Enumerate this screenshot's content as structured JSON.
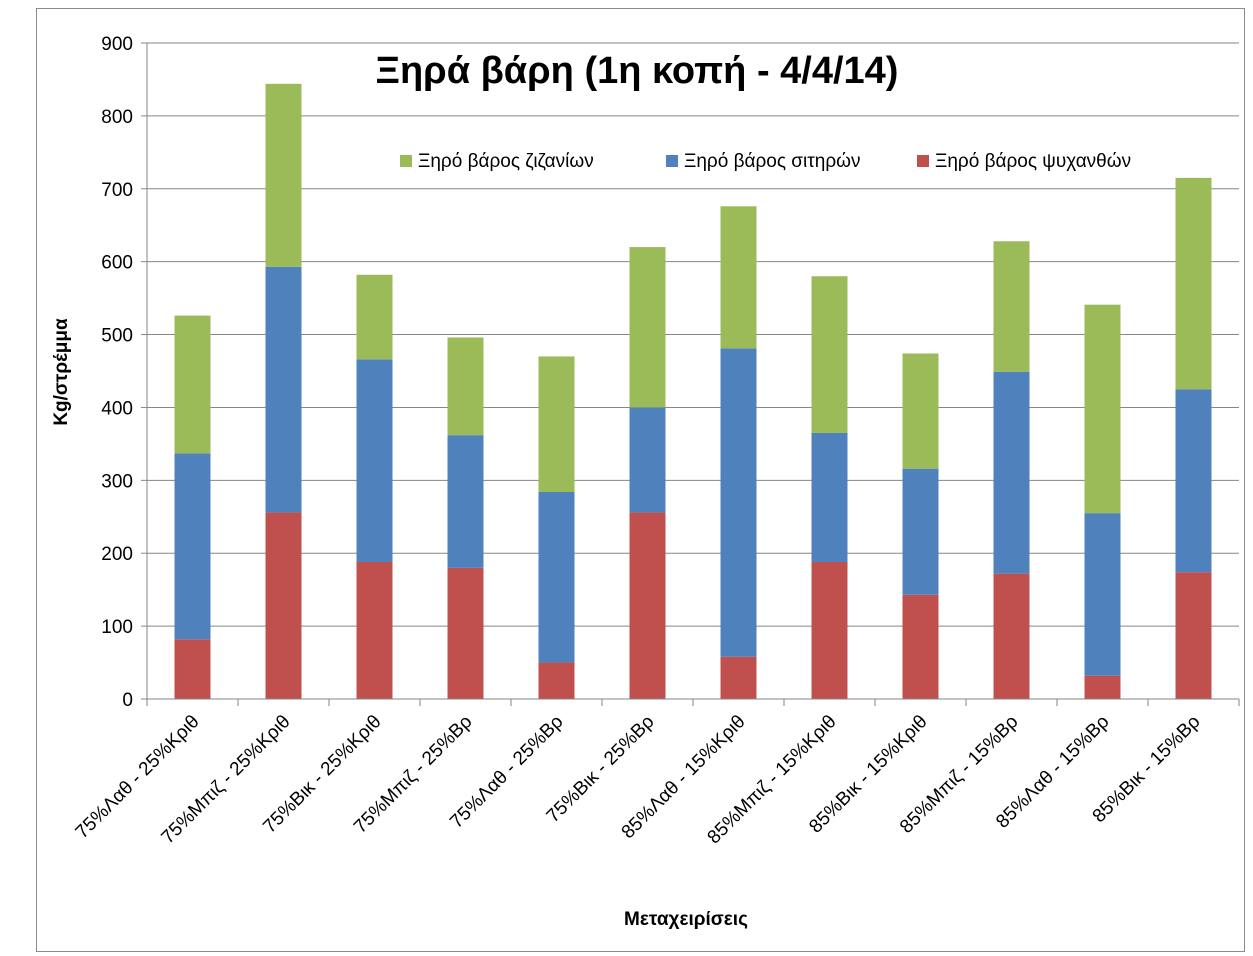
{
  "chart_data": {
    "type": "bar",
    "stacked": true,
    "title": "Ξηρά βάρη (1η κοπή - 4/4/14)",
    "xlabel": "Μεταχειρίσεις",
    "ylabel": "Kg/στρέμμα",
    "ylim": [
      0,
      900
    ],
    "yticks": [
      0,
      100,
      200,
      300,
      400,
      500,
      600,
      700,
      800,
      900
    ],
    "grid": true,
    "legend_position": "top-right",
    "categories": [
      "75%Λαθ - 25%Κριθ",
      "75%Μπιζ - 25%Κριθ",
      "75%Βικ - 25%Κριθ",
      "75%Μπιζ - 25%Βρ",
      "75%Λαθ - 25%Βρ",
      "75%Βικ - 25%Βρ",
      "85%Λαθ - 15%Κριθ",
      "85%Μπιζ - 15%Κριθ",
      "85%Βικ - 15%Κριθ",
      "85%Μπιζ - 15%Βρ",
      "85%Λαθ - 15%Βρ",
      "85%Βικ - 15%Βρ"
    ],
    "series": [
      {
        "name": "Ξηρό βάρος ψυχανθών",
        "color": "#c0504d",
        "values": [
          82,
          256,
          188,
          180,
          50,
          256,
          58,
          188,
          143,
          172,
          32,
          174
        ]
      },
      {
        "name": "Ξηρό βάρος σιτηρών",
        "color": "#4f81bd",
        "values": [
          255,
          337,
          278,
          182,
          234,
          144,
          423,
          177,
          173,
          277,
          223,
          251
        ]
      },
      {
        "name": "Ξηρό βάρος ζιζανίων",
        "color": "#9bbb59",
        "values": [
          189,
          251,
          116,
          134,
          186,
          220,
          195,
          215,
          158,
          179,
          286,
          290
        ]
      }
    ],
    "legend_order": [
      "Ξηρό βάρος ζιζανίων",
      "Ξηρό βάρος σιτηρών",
      "Ξηρό βάρος ψυχανθών"
    ]
  }
}
